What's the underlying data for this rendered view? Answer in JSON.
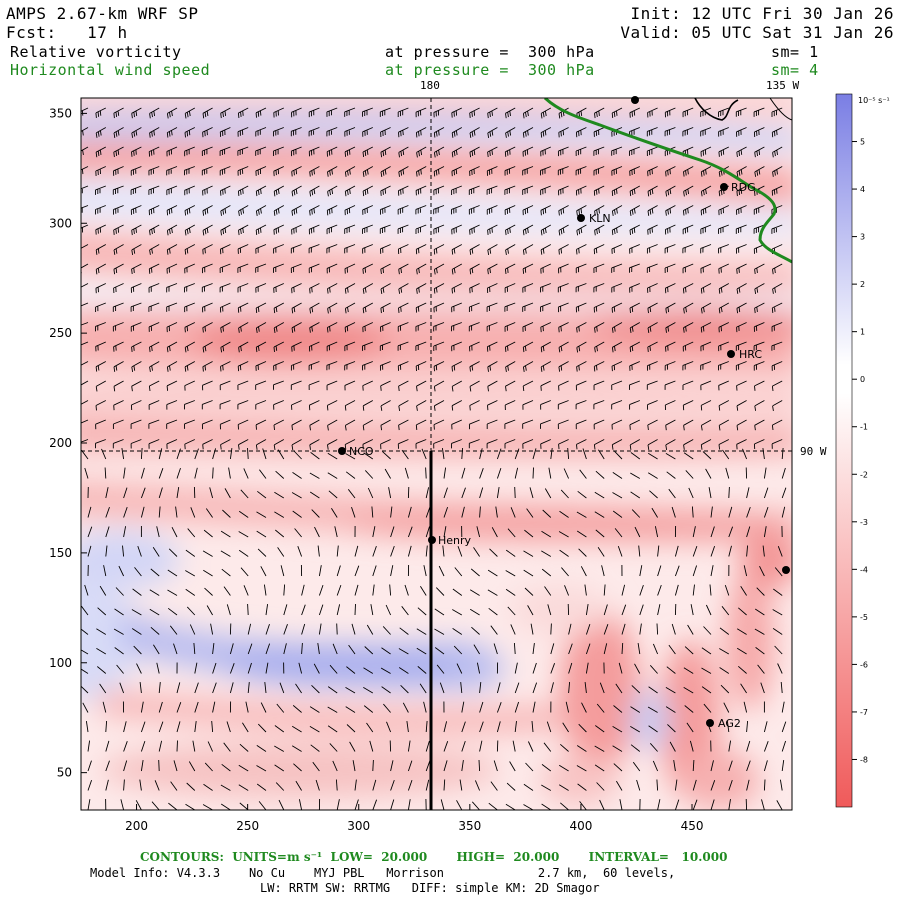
{
  "header": {
    "model": "AMPS 2.67-km WRF SP",
    "forecast": "Fcst:   17 h",
    "init": "Init: 12 UTC Fri 30 Jan 26",
    "valid": "Valid: 05 UTC Sat 31 Jan 26",
    "field1": "Relative vorticity",
    "field1_level": "at pressure =  300 hPa",
    "field1_sm": "sm= 1",
    "field2": "Horizontal wind speed",
    "field2_level": "at pressure =  300 hPa",
    "field2_sm": "sm= 4"
  },
  "map": {
    "lon_label_top": "180",
    "lon_label_top_right": "135 W",
    "lat_label_right": "90 W",
    "stations": [
      "KLN",
      "RDG",
      "HRC",
      "NCO",
      "Henry",
      "AG2"
    ],
    "colors": {
      "coast": "#1f8a1f",
      "positive": "#6a6ee0",
      "negative": "#f05a5a"
    }
  },
  "chart_data": {
    "type": "heatmap",
    "xlabel": "",
    "ylabel": "",
    "x_ticks": [
      "200",
      "250",
      "300",
      "350",
      "400",
      "450"
    ],
    "y_ticks": [
      "350",
      "300",
      "250",
      "200",
      "150",
      "100",
      "50"
    ],
    "xlim": [
      175,
      495
    ],
    "ylim": [
      33,
      357
    ],
    "colorbar": {
      "unit_label": "10⁻⁵ s⁻¹",
      "ticks": [
        "5",
        "4",
        "3",
        "2",
        "1",
        "0",
        "-1",
        "-2",
        "-3",
        "-4",
        "-5",
        "-6",
        "-7",
        "-8"
      ],
      "values": [
        5,
        4,
        3,
        2,
        1,
        0,
        -1,
        -2,
        -3,
        -4,
        -5,
        -6,
        -7,
        -8
      ],
      "range": [
        -9,
        6
      ]
    }
  },
  "footer": {
    "contours": "CONTOURS:  UNITS=m s⁻¹  LOW=  20.000       HIGH=  20.000       INTERVAL=   10.000",
    "model_info": "Model Info: V4.3.3    No Cu    MYJ PBL   Morrison             2.7 km,  60 levels,",
    "physics": "LW: RRTM SW: RRTMG   DIFF: simple KM: 2D Smagor"
  }
}
